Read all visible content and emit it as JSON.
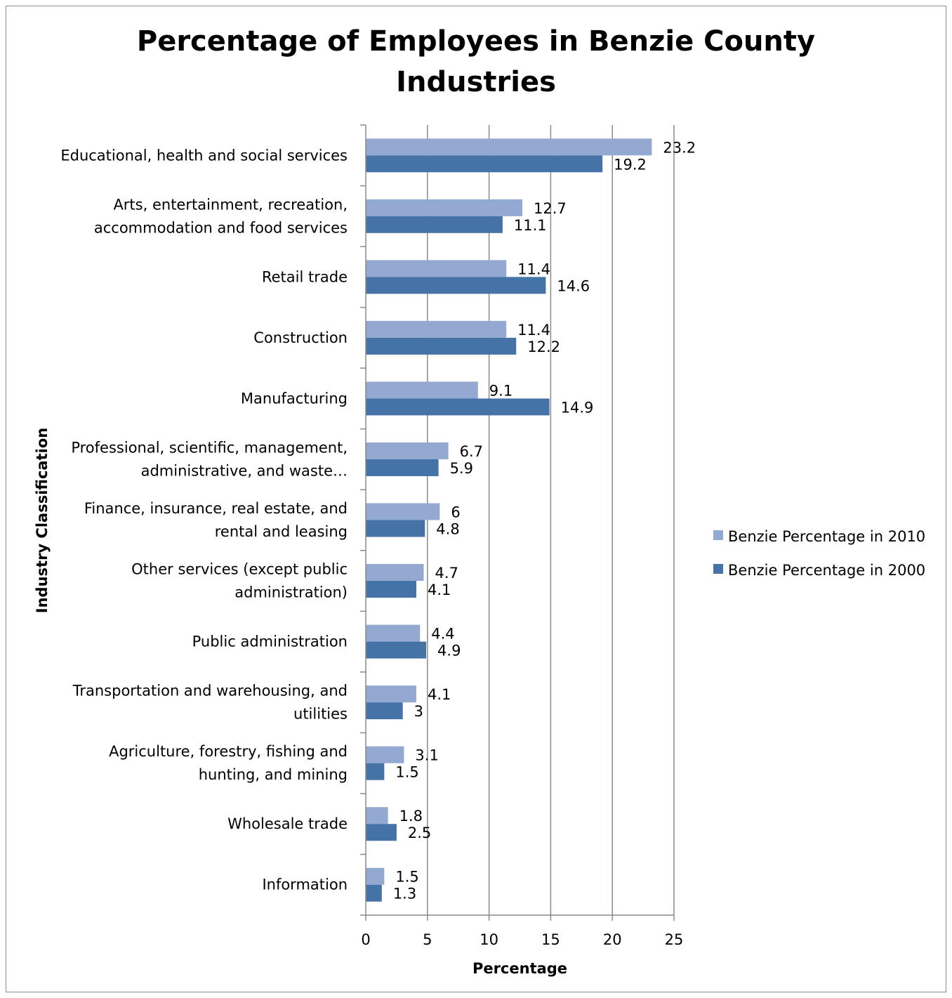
{
  "chart_data": {
    "type": "bar",
    "orientation": "horizontal",
    "title_lines": [
      "Percentage of Employees in Benzie County",
      "Industries"
    ],
    "title": "Percentage of Employees in Benzie County Industries",
    "xlabel": "Percentage",
    "ylabel": "Industry Classification",
    "xlim": [
      0,
      25
    ],
    "x_ticks": [
      0,
      5,
      10,
      15,
      20,
      25
    ],
    "grid": "vertical major gridlines",
    "legend_position": "right",
    "categories": [
      [
        "Educational, health and social services"
      ],
      [
        "Arts, entertainment, recreation,",
        "accommodation and food services"
      ],
      [
        "Retail trade"
      ],
      [
        "Construction"
      ],
      [
        "Manufacturing"
      ],
      [
        "Professional, scientific, management,",
        "administrative, and waste…"
      ],
      [
        "Finance, insurance, real estate, and",
        "rental and leasing"
      ],
      [
        "Other services (except public",
        "administration)"
      ],
      [
        "Public administration"
      ],
      [
        "Transportation and warehousing, and",
        "utilities"
      ],
      [
        "Agriculture, forestry, fishing and",
        "hunting, and mining"
      ],
      [
        "Wholesale trade"
      ],
      [
        "Information"
      ]
    ],
    "series": [
      {
        "name": "Benzie Percentage in 2010",
        "color": "#94a9d1",
        "values": [
          23.2,
          12.7,
          11.4,
          11.4,
          9.1,
          6.7,
          6,
          4.7,
          4.4,
          4.1,
          3.1,
          1.8,
          1.5
        ]
      },
      {
        "name": "Benzie Percentage in 2000",
        "color": "#4572a7",
        "values": [
          19.2,
          11.1,
          14.6,
          12.2,
          14.9,
          5.9,
          4.8,
          4.1,
          4.9,
          3,
          1.5,
          2.5,
          1.3
        ]
      }
    ]
  }
}
